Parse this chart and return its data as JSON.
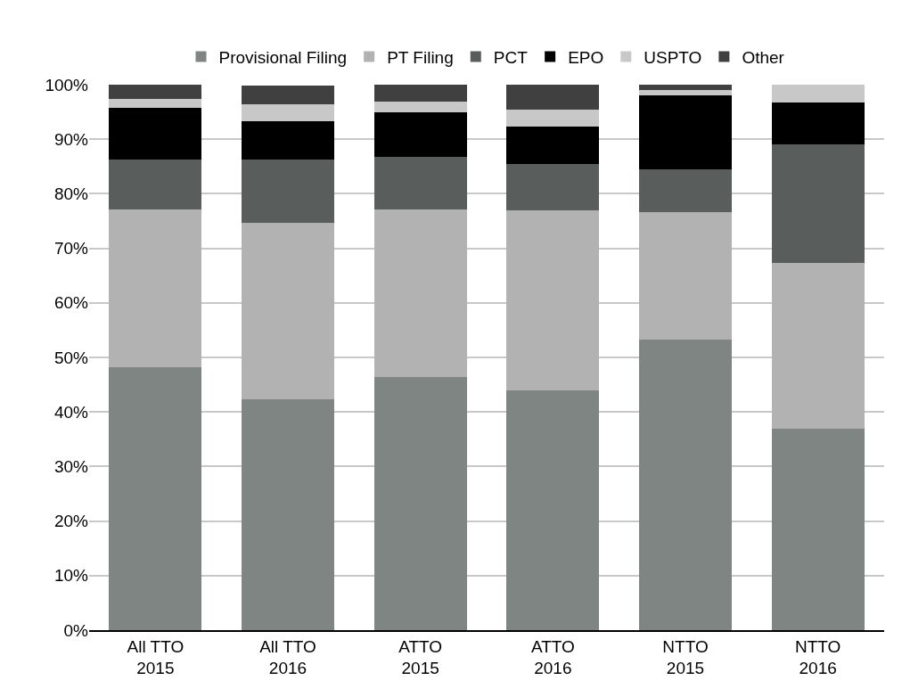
{
  "chart_data": {
    "type": "bar",
    "stacked": true,
    "legend": "top",
    "grid": "y",
    "categories": [
      "All TTO 2015",
      "All TTO 2016",
      "ATTO 2015",
      "ATTO 2016",
      "NTTO 2015",
      "NTTO 2016"
    ],
    "series": [
      {
        "name": "Provisional Filing",
        "color": "#7f8582",
        "values": [
          48.2,
          42.3,
          46.4,
          43.9,
          53.3,
          37.0
        ]
      },
      {
        "name": "PT Filing",
        "color": "#b2b2b2",
        "values": [
          28.9,
          32.4,
          30.7,
          33.0,
          23.3,
          30.4
        ]
      },
      {
        "name": "PCT",
        "color": "#595d5c",
        "values": [
          9.2,
          11.6,
          9.6,
          8.6,
          7.8,
          21.7
        ]
      },
      {
        "name": "EPO",
        "color": "#000000",
        "values": [
          9.5,
          7.0,
          8.3,
          6.8,
          13.6,
          7.6
        ]
      },
      {
        "name": "USPTO",
        "color": "#c8c8c8",
        "values": [
          1.6,
          3.1,
          1.9,
          3.2,
          1.0,
          3.3
        ]
      },
      {
        "name": "Other",
        "color": "#404040",
        "values": [
          2.6,
          3.4,
          3.1,
          4.5,
          1.0,
          0
        ]
      }
    ],
    "ylim": [
      0,
      100
    ],
    "yticks": [
      {
        "value": 0,
        "label": "0%"
      },
      {
        "value": 10,
        "label": "10%"
      },
      {
        "value": 20,
        "label": "20%"
      },
      {
        "value": 30,
        "label": "30%"
      },
      {
        "value": 40,
        "label": "40%"
      },
      {
        "value": 50,
        "label": "50%"
      },
      {
        "value": 60,
        "label": "60%"
      },
      {
        "value": 70,
        "label": "70%"
      },
      {
        "value": 80,
        "label": "80%"
      },
      {
        "value": 90,
        "label": "90%"
      },
      {
        "value": 100,
        "label": "100%"
      }
    ]
  }
}
